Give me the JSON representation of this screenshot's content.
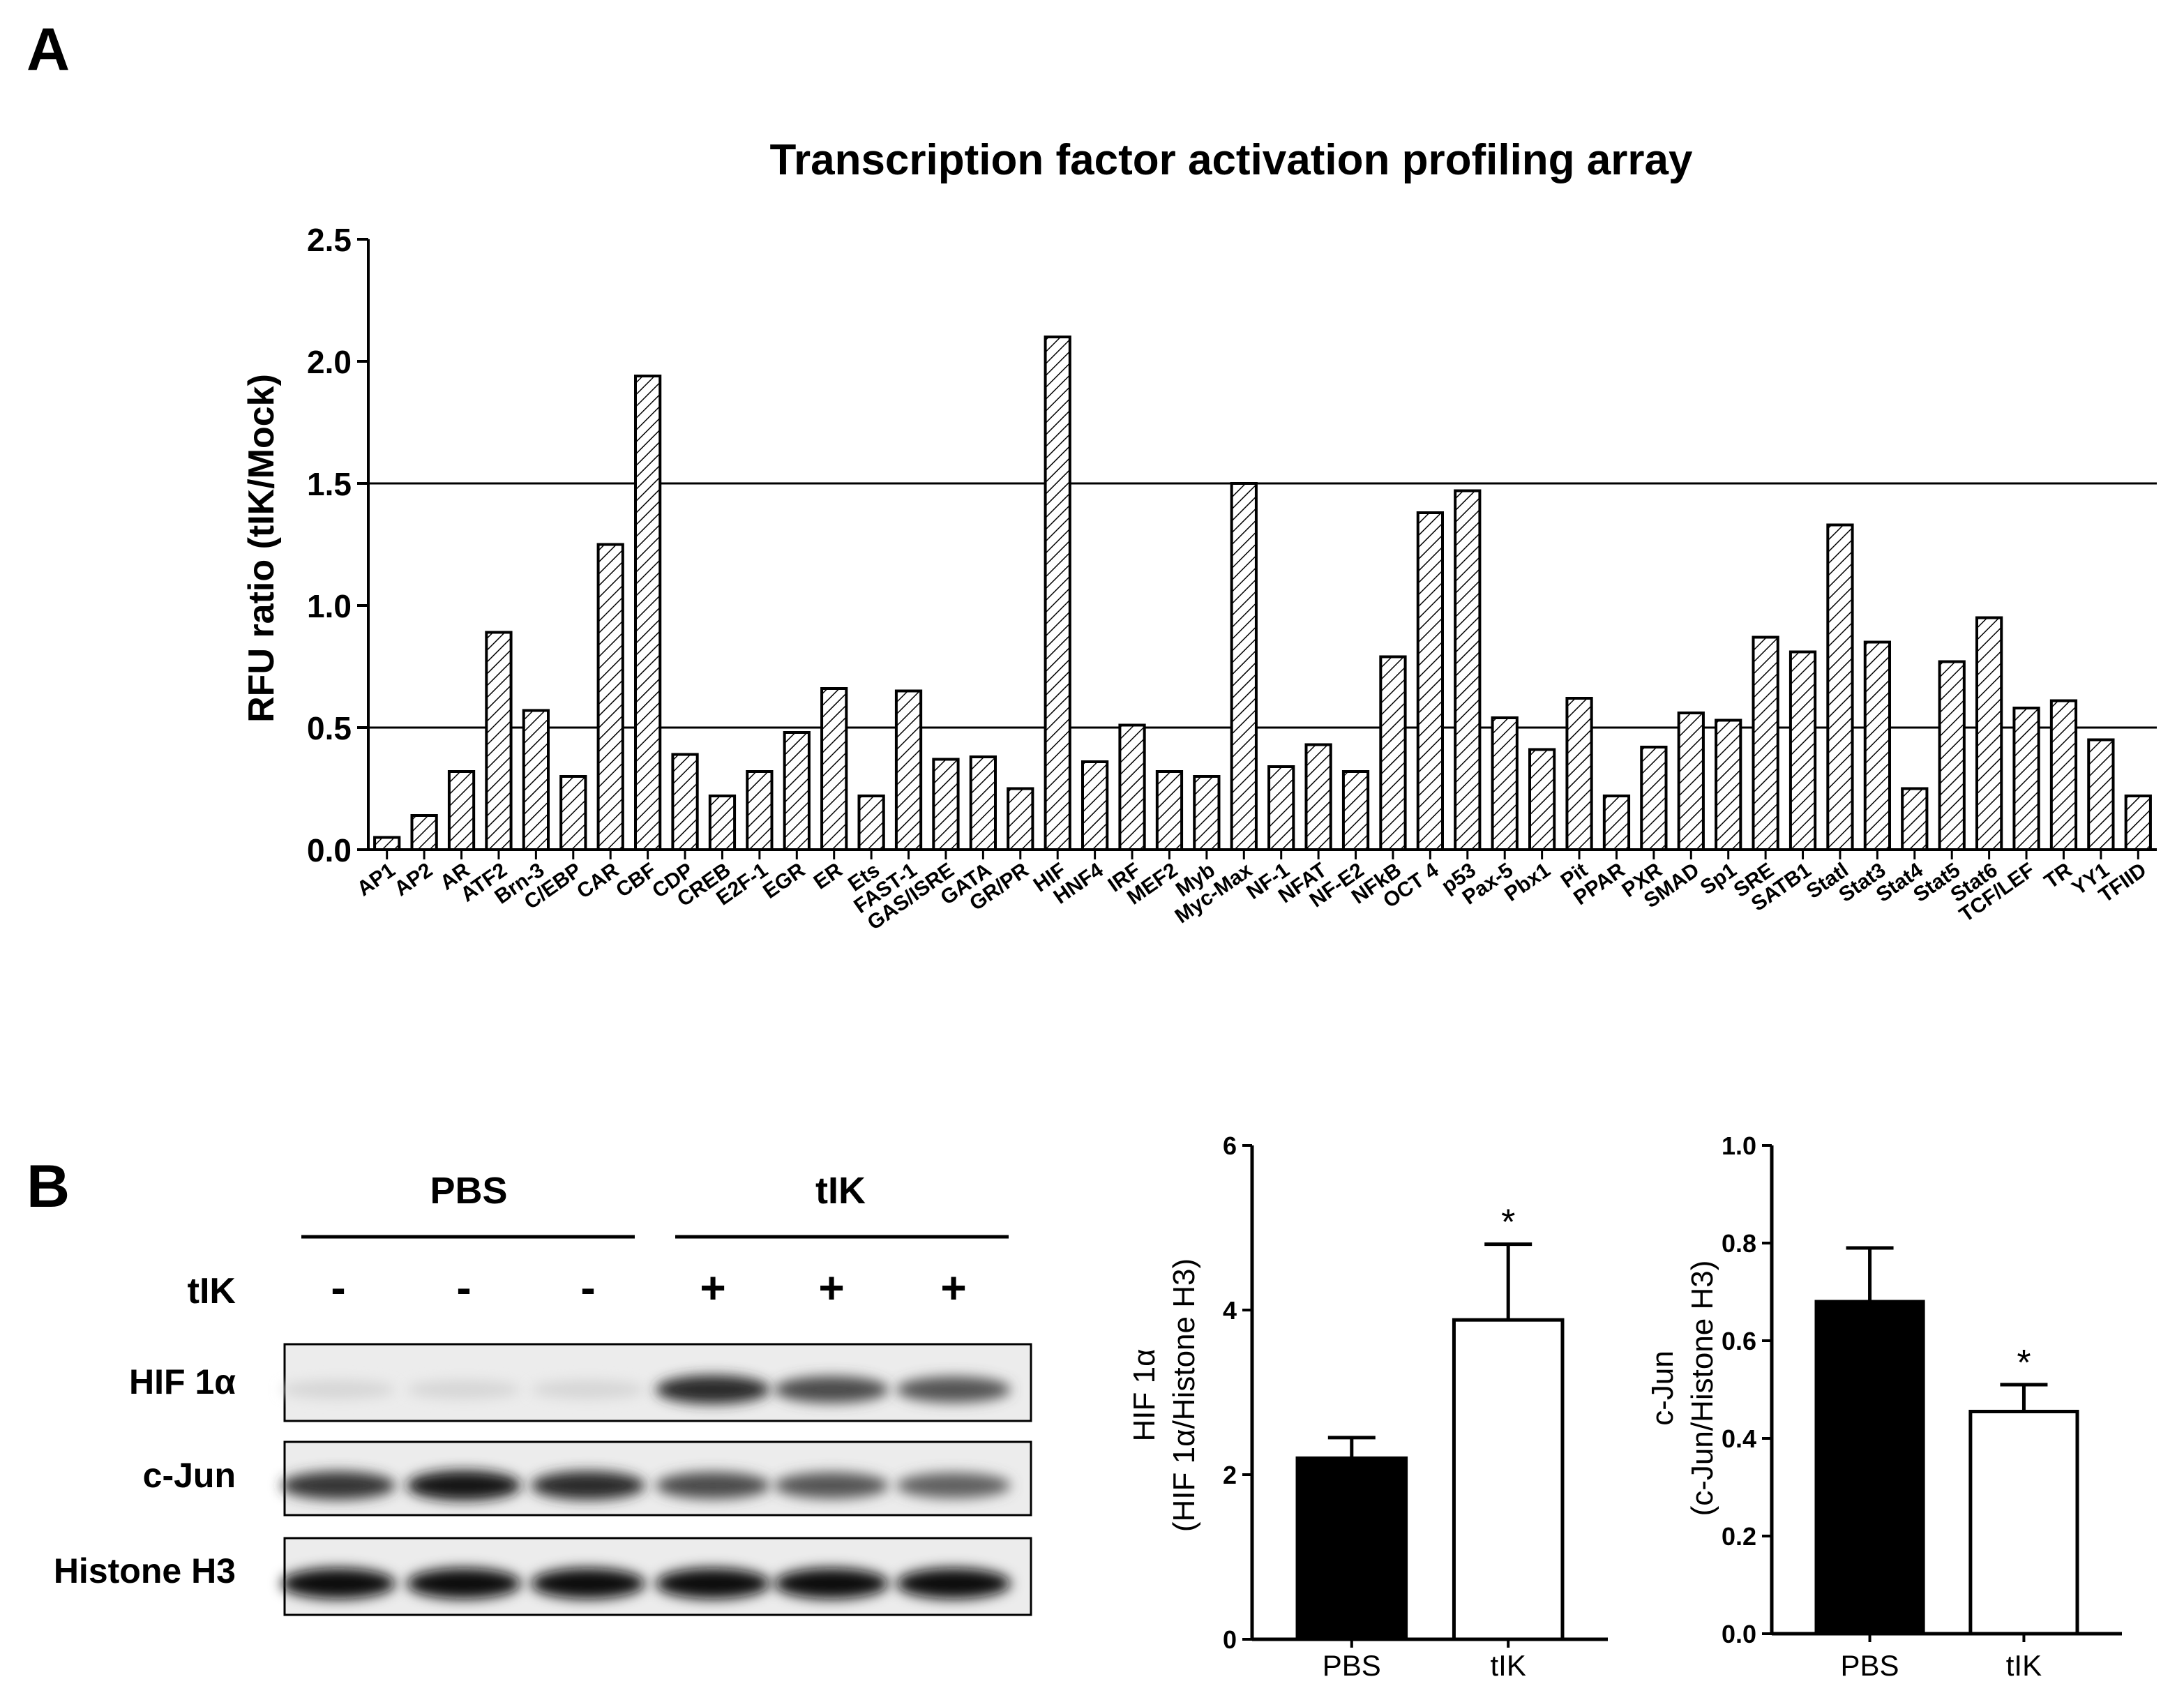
{
  "panels": {
    "a_label": "A",
    "b_label": "B"
  },
  "colors": {
    "bar_black": "#000000",
    "bar_white": "#ffffff",
    "hatch": "#000000"
  },
  "chart_data": [
    {
      "id": "panel-a",
      "type": "bar",
      "title": "Transcription factor activation profiling array",
      "ylabel": "RFU ratio (tIK/Mock)",
      "xlabel": "",
      "ylim": [
        0,
        2.5
      ],
      "yticks": [
        "0.0",
        "0.5",
        "1.0",
        "1.5",
        "2.0",
        "2.5"
      ],
      "reference_lines": [
        0.5,
        1.5
      ],
      "categories": [
        "AP1",
        "AP2",
        "AR",
        "ATF2",
        "Brn-3",
        "C/EBP",
        "CAR",
        "CBF",
        "CDP",
        "CREB",
        "E2F-1",
        "EGR",
        "ER",
        "Ets",
        "FAST-1",
        "GAS/ISRE",
        "GATA",
        "GR/PR",
        "HIF",
        "HNF4",
        "IRF",
        "MEF2",
        "Myb",
        "Myc-Max",
        "NF-1",
        "NFAT",
        "NF-E2",
        "NFkB",
        "OCT 4",
        "p53",
        "Pax-5",
        "Pbx1",
        "Pit",
        "PPAR",
        "PXR",
        "SMAD",
        "Sp1",
        "SRE",
        "SATB1",
        "Statl",
        "Stat3",
        "Stat4",
        "Stat5",
        "Stat6",
        "TCF/LEF",
        "TR",
        "YY1",
        "TFIID"
      ],
      "values": [
        0.05,
        0.14,
        0.32,
        0.89,
        0.57,
        0.3,
        1.25,
        1.94,
        0.39,
        0.22,
        0.32,
        0.48,
        0.66,
        0.22,
        0.65,
        0.37,
        0.38,
        0.25,
        2.1,
        0.36,
        0.51,
        0.32,
        0.3,
        1.5,
        0.34,
        0.43,
        0.32,
        0.79,
        1.38,
        1.47,
        0.54,
        0.41,
        0.62,
        0.22,
        0.42,
        0.56,
        0.53,
        0.87,
        0.81,
        1.33,
        0.85,
        0.25,
        0.77,
        0.95,
        0.58,
        0.61,
        0.45,
        0.22
      ]
    },
    {
      "id": "panel-b-hif",
      "type": "bar",
      "ylabel_line1": "HIF 1α",
      "ylabel_line2": "(HIF 1α/Histone H3)",
      "ylim": [
        0,
        6
      ],
      "yticks": [
        "0",
        "2",
        "4",
        "6"
      ],
      "categories": [
        "PBS",
        "tIK"
      ],
      "values": [
        2.2,
        3.88
      ],
      "errors": [
        0.25,
        0.92
      ],
      "significance": [
        "",
        "*"
      ],
      "fills": [
        "black",
        "white"
      ]
    },
    {
      "id": "panel-b-cjun",
      "type": "bar",
      "ylabel_line1": "c-Jun",
      "ylabel_line2": "(c-Jun/Histone H3)",
      "ylim": [
        0,
        1.0
      ],
      "yticks": [
        "0.0",
        "0.2",
        "0.4",
        "0.6",
        "0.8",
        "1.0"
      ],
      "categories": [
        "PBS",
        "tIK"
      ],
      "values": [
        0.68,
        0.455
      ],
      "errors": [
        0.11,
        0.055
      ],
      "significance": [
        "",
        "*"
      ],
      "fills": [
        "black",
        "white"
      ]
    }
  ],
  "blot": {
    "group_labels": [
      "PBS",
      "tIK"
    ],
    "treatment_label": "tIK",
    "treatment_signs": [
      "-",
      "-",
      "-",
      "+",
      "+",
      "+"
    ],
    "rows": [
      {
        "label": "HIF 1α",
        "intensities": [
          0.05,
          0.05,
          0.05,
          0.85,
          0.7,
          0.65
        ]
      },
      {
        "label": "c-Jun",
        "intensities": [
          0.8,
          0.95,
          0.85,
          0.7,
          0.65,
          0.6
        ]
      },
      {
        "label": "Histone H3",
        "intensities": [
          1,
          1,
          1,
          1,
          1,
          1
        ]
      }
    ]
  }
}
